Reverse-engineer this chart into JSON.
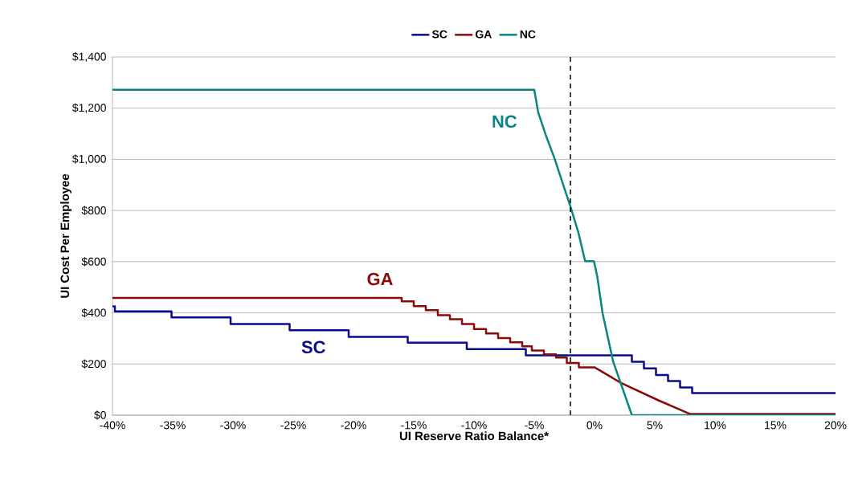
{
  "chart_data": {
    "type": "line",
    "xlabel": "UI Reserve Ratio Balance*",
    "ylabel": "UI Cost Per Employee",
    "series": [
      {
        "name": "SC",
        "color": "#0b0b8a",
        "type": "step",
        "x": [
          -40,
          -39.8,
          -35.1,
          -30.2,
          -25.3,
          -20.4,
          -15.5,
          -10.6,
          -5.7,
          3.1,
          4.1,
          5.1,
          6.1,
          7.1,
          8.1,
          20
        ],
        "values": [
          425,
          406,
          382,
          356,
          332,
          306,
          283,
          258,
          234,
          209,
          183,
          157,
          133,
          108,
          86,
          86
        ]
      },
      {
        "name": "GA",
        "color": "#8b0a0a",
        "x": [
          -40,
          -16,
          -16,
          -15,
          -15,
          -14,
          -14,
          -13,
          -13,
          -12,
          -12,
          -11,
          -11,
          -10,
          -10,
          -9,
          -9,
          -8,
          -8,
          -7,
          -7,
          -6,
          -6,
          -5.2,
          -5.2,
          -4.2,
          -4.2,
          -3.2,
          -3.2,
          -2.3,
          -2.3,
          -1.3,
          -1.3,
          0,
          2.2,
          5.3,
          7.9,
          20
        ],
        "values": [
          458,
          458,
          445,
          445,
          426,
          426,
          410,
          410,
          391,
          391,
          375,
          375,
          356,
          356,
          337,
          337,
          319,
          319,
          301,
          301,
          285,
          285,
          269,
          269,
          253,
          253,
          238,
          238,
          225,
          225,
          204,
          204,
          187,
          187,
          126,
          58,
          5,
          5
        ]
      },
      {
        "name": "NC",
        "color": "#0a8585",
        "x": [
          -40,
          -5,
          -4.67,
          -4,
          -3.33,
          -2.67,
          -2,
          -1.33,
          -0.78,
          -0.05,
          0.22,
          0.67,
          1.55,
          3.1,
          20
        ],
        "values": [
          1272,
          1272,
          1183,
          1089,
          1005,
          911,
          816,
          712,
          602,
          602,
          544,
          398,
          209,
          0,
          0
        ]
      }
    ],
    "annotations": [
      "SC",
      "GA",
      "NC"
    ],
    "ref_lines": [
      {
        "axis": "x",
        "value": -2,
        "color": "#000000",
        "line_style": "dashed"
      }
    ],
    "xlim": [
      -40,
      20
    ],
    "ylim": [
      0,
      1400
    ],
    "xticks": [
      {
        "value": -40,
        "label": "-40%"
      },
      {
        "value": -35,
        "label": "-35%"
      },
      {
        "value": -30,
        "label": "-30%"
      },
      {
        "value": -25,
        "label": "-25%"
      },
      {
        "value": -20,
        "label": "-20%"
      },
      {
        "value": -15,
        "label": "-15%"
      },
      {
        "value": -10,
        "label": "-10%"
      },
      {
        "value": -5,
        "label": "-5%"
      },
      {
        "value": 0,
        "label": "0%"
      },
      {
        "value": 5,
        "label": "5%"
      },
      {
        "value": 10,
        "label": "10%"
      },
      {
        "value": 15,
        "label": "15%"
      },
      {
        "value": 20,
        "label": "20%"
      }
    ],
    "yticks": [
      {
        "value": 0,
        "label": "$0"
      },
      {
        "value": 200,
        "label": "$200"
      },
      {
        "value": 400,
        "label": "$400"
      },
      {
        "value": 600,
        "label": "$600"
      },
      {
        "value": 800,
        "label": "$800"
      },
      {
        "value": 1000,
        "label": "$1,000"
      },
      {
        "value": 1200,
        "label": "$1,200"
      },
      {
        "value": 1400,
        "label": "$1,400"
      }
    ],
    "grid": "y",
    "legend": "top",
    "marker": "none",
    "line_style": "solid"
  }
}
